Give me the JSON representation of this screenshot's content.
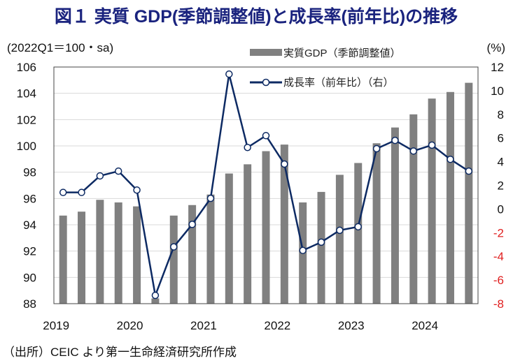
{
  "chart_data": {
    "type": "bar+line",
    "title": "図１ 実質 GDP(季節調整値)と成長率(前年比)の推移",
    "left_axis_label": "(2022Q1＝100・sa)",
    "right_axis_label": "(%)",
    "source": "（出所）CEIC より第一生命経済研究所作成",
    "left_ylim": [
      88,
      106
    ],
    "left_ticks": [
      "88",
      "90",
      "92",
      "94",
      "96",
      "98",
      "100",
      "102",
      "104",
      "106"
    ],
    "right_ylim": [
      -8,
      12
    ],
    "right_ticks": [
      "-8",
      "-6",
      "-4",
      "-2",
      "0",
      "2",
      "4",
      "6",
      "8",
      "10",
      "12"
    ],
    "x_tick_labels": [
      "2019",
      "2020",
      "2021",
      "2022",
      "2023",
      "2024"
    ],
    "categories": [
      "2019Q1",
      "2019Q2",
      "2019Q3",
      "2019Q4",
      "2020Q1",
      "2020Q2",
      "2020Q3",
      "2020Q4",
      "2021Q1",
      "2021Q2",
      "2021Q3",
      "2021Q4",
      "2022Q1",
      "2022Q2",
      "2022Q3",
      "2022Q4",
      "2023Q1",
      "2023Q2",
      "2023Q3",
      "2023Q4",
      "2024Q1",
      "2024Q2",
      "2024Q3"
    ],
    "series": [
      {
        "name": "実質GDP（季節調整値）",
        "type": "bar",
        "axis": "left",
        "color": "#808080",
        "values": [
          94.7,
          95.0,
          95.9,
          95.7,
          95.4,
          88.4,
          94.7,
          95.5,
          96.3,
          97.9,
          98.6,
          99.6,
          100.1,
          95.7,
          96.5,
          97.8,
          98.7,
          100.2,
          101.4,
          102.4,
          103.6,
          104.1,
          104.8
        ]
      },
      {
        "name": "成長率（前年比）（右）",
        "type": "line",
        "axis": "right",
        "color": "#0d2a63",
        "values": [
          1.4,
          1.4,
          2.8,
          3.2,
          1.6,
          -7.3,
          -3.2,
          -1.3,
          0.9,
          11.4,
          5.2,
          6.2,
          3.8,
          -3.5,
          -2.8,
          -1.8,
          -1.5,
          5.1,
          5.8,
          4.9,
          5.4,
          4.2,
          3.2
        ]
      }
    ],
    "negative_tick_color": "#e02020",
    "grid": true,
    "legend_position": "top-center"
  }
}
